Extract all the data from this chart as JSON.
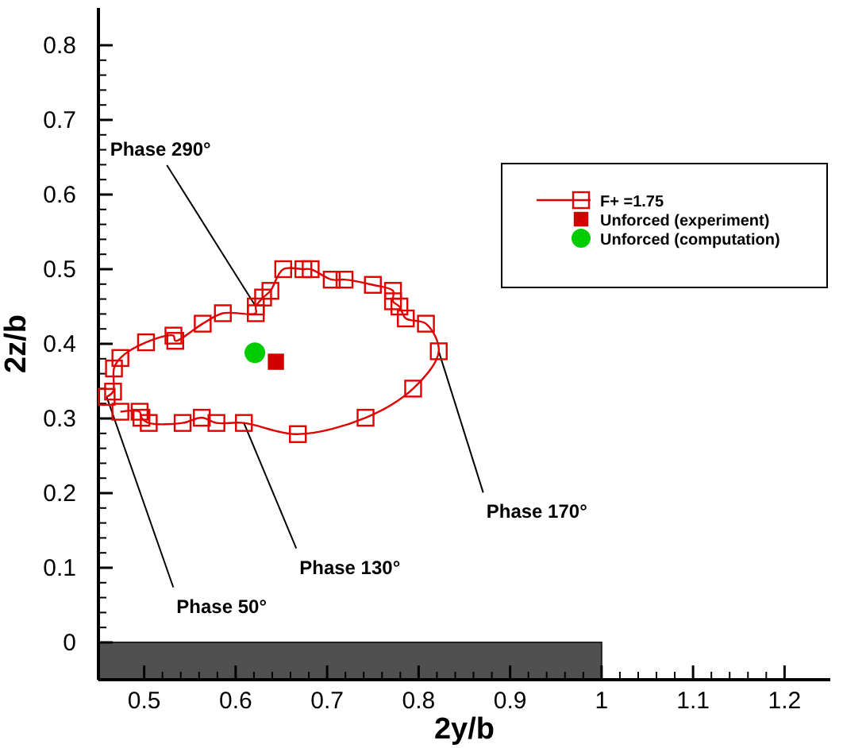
{
  "chart_data": {
    "type": "line",
    "xlabel": "2y/b",
    "ylabel": "2z/b",
    "xlim": [
      0.45,
      1.25
    ],
    "ylim": [
      -0.05,
      0.85
    ],
    "xticks": [
      0.5,
      0.6,
      0.7,
      0.8,
      0.9,
      1,
      1.1,
      1.2
    ],
    "yticks": [
      0,
      0.1,
      0.2,
      0.3,
      0.4,
      0.5,
      0.6,
      0.7,
      0.8
    ],
    "grid": false,
    "legend": "top right",
    "series": [
      {
        "name": "F+ =1.75",
        "type": "line",
        "marker": "square",
        "line_style": "solid",
        "color": "#e00000",
        "x": [
          0.459,
          0.466,
          0.467,
          0.474,
          0.502,
          0.532,
          0.534,
          0.564,
          0.586,
          0.622,
          0.622,
          0.63,
          0.638,
          0.652,
          0.674,
          0.682,
          0.705,
          0.719,
          0.75,
          0.772,
          0.772,
          0.779,
          0.786,
          0.808,
          0.822,
          0.794,
          0.742,
          0.668,
          0.609,
          0.579,
          0.563,
          0.542,
          0.505,
          0.497,
          0.495,
          0.474
        ],
        "values": [
          0.329,
          0.336,
          0.367,
          0.381,
          0.402,
          0.411,
          0.404,
          0.427,
          0.441,
          0.441,
          0.45,
          0.462,
          0.471,
          0.5,
          0.5,
          0.5,
          0.486,
          0.486,
          0.479,
          0.471,
          0.457,
          0.45,
          0.434,
          0.427,
          0.39,
          0.34,
          0.301,
          0.279,
          0.294,
          0.294,
          0.301,
          0.294,
          0.294,
          0.301,
          0.309,
          0.309
        ]
      },
      {
        "name": "Unforced (experiment)",
        "type": "scatter",
        "marker": "square",
        "color": "#d00000",
        "x": [
          0.644
        ],
        "values": [
          0.376
        ]
      },
      {
        "name": "Unforced (computation)",
        "type": "scatter",
        "marker": "circle",
        "color": "#00cc00",
        "x": [
          0.621
        ],
        "values": [
          0.388
        ]
      }
    ],
    "annotations": [
      {
        "text": "Phase 290°",
        "x": 0.622,
        "y": 0.45
      },
      {
        "text": "Phase 170°",
        "x": 0.822,
        "y": 0.39
      },
      {
        "text": "Phase 130°",
        "x": 0.609,
        "y": 0.294
      },
      {
        "text": "Phase 50°",
        "x": 0.459,
        "y": 0.329
      }
    ]
  }
}
